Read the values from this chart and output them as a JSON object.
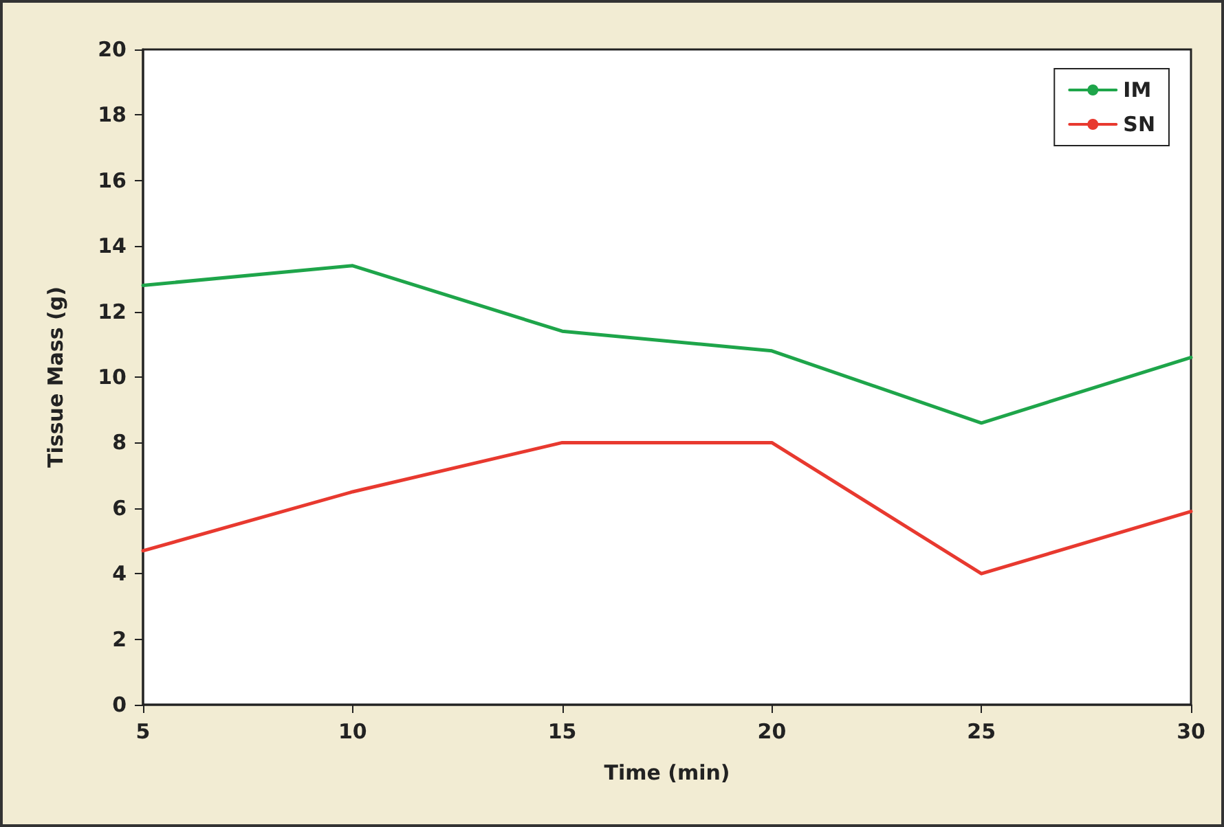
{
  "chart_data": {
    "type": "line",
    "xlabel": "Time (min)",
    "ylabel": "Tissue Mass (g)",
    "x": [
      5,
      10,
      15,
      20,
      25,
      30
    ],
    "series": [
      {
        "name": "IM",
        "color": "#1ea54a",
        "values": [
          12.8,
          13.4,
          11.4,
          10.8,
          8.6,
          10.6
        ]
      },
      {
        "name": "SN",
        "color": "#e8392f",
        "values": [
          4.7,
          6.5,
          8.0,
          8.0,
          4.0,
          5.9
        ]
      }
    ],
    "xlim": [
      5,
      30
    ],
    "xticks": [
      5,
      10,
      15,
      20,
      25,
      30
    ],
    "ylim": [
      0,
      20
    ],
    "yticks": [
      0,
      2,
      4,
      6,
      8,
      10,
      12,
      14,
      16,
      18,
      20
    ],
    "grid": false,
    "legend": "top right",
    "marker": "none",
    "line_style": "solid"
  }
}
